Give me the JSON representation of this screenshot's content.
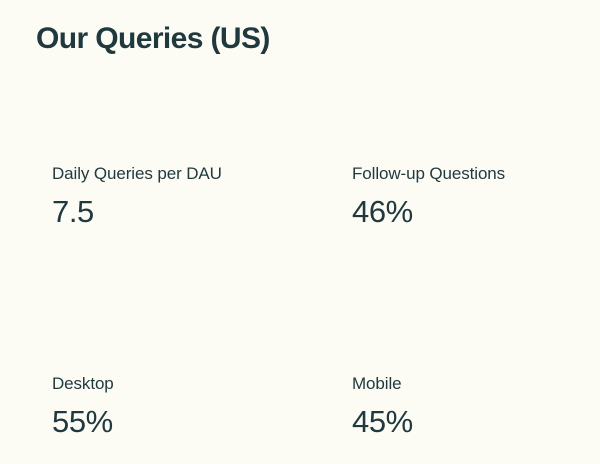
{
  "theme": {
    "background_color": "#FCFBF4",
    "text_color": "#1F393E"
  },
  "header": {
    "title": "Our Queries (US)"
  },
  "stats": [
    {
      "label": "Daily Queries per DAU",
      "value": "7.5"
    },
    {
      "label": "Follow-up Questions",
      "value": "46%"
    },
    {
      "label": "Desktop",
      "value": "55%"
    },
    {
      "label": "Mobile",
      "value": "45%"
    }
  ]
}
